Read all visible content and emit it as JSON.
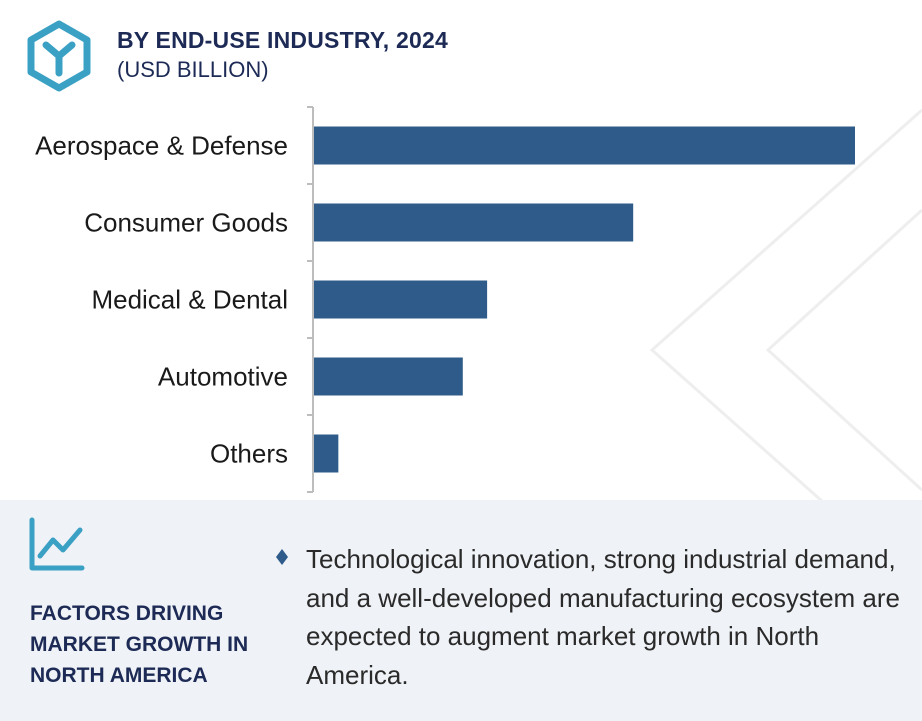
{
  "header": {
    "title": "BY END-USE INDUSTRY, 2024",
    "subtitle": "(USD BILLION)",
    "logo_icon": "hexagon-y-logo-icon"
  },
  "colors": {
    "bar": "#2e5b8a",
    "accent": "#3aa0c4",
    "heading": "#1c2a55",
    "footer_bg": "#eff2f6"
  },
  "chart_data": {
    "type": "bar",
    "orientation": "horizontal",
    "categories": [
      "Aerospace & Defense",
      "Consumer Goods",
      "Medical & Dental",
      "Automotive",
      "Others"
    ],
    "values": [
      100,
      59,
      32,
      27.5,
      4.5
    ],
    "xlim": [
      0,
      100
    ],
    "title": "BY END-USE INDUSTRY, 2024",
    "subtitle": "(USD BILLION)",
    "grid": false,
    "legend": "none"
  },
  "footer": {
    "icon": "trend-line-chart-icon",
    "heading": "FACTORS DRIVING MARKET GROWTH IN NORTH AMERICA",
    "bullet_icon": "diamond-bullet-icon",
    "text": "Technological innovation, strong industrial demand, and a well-developed manufacturing ecosystem are expected to augment market growth in North America."
  }
}
